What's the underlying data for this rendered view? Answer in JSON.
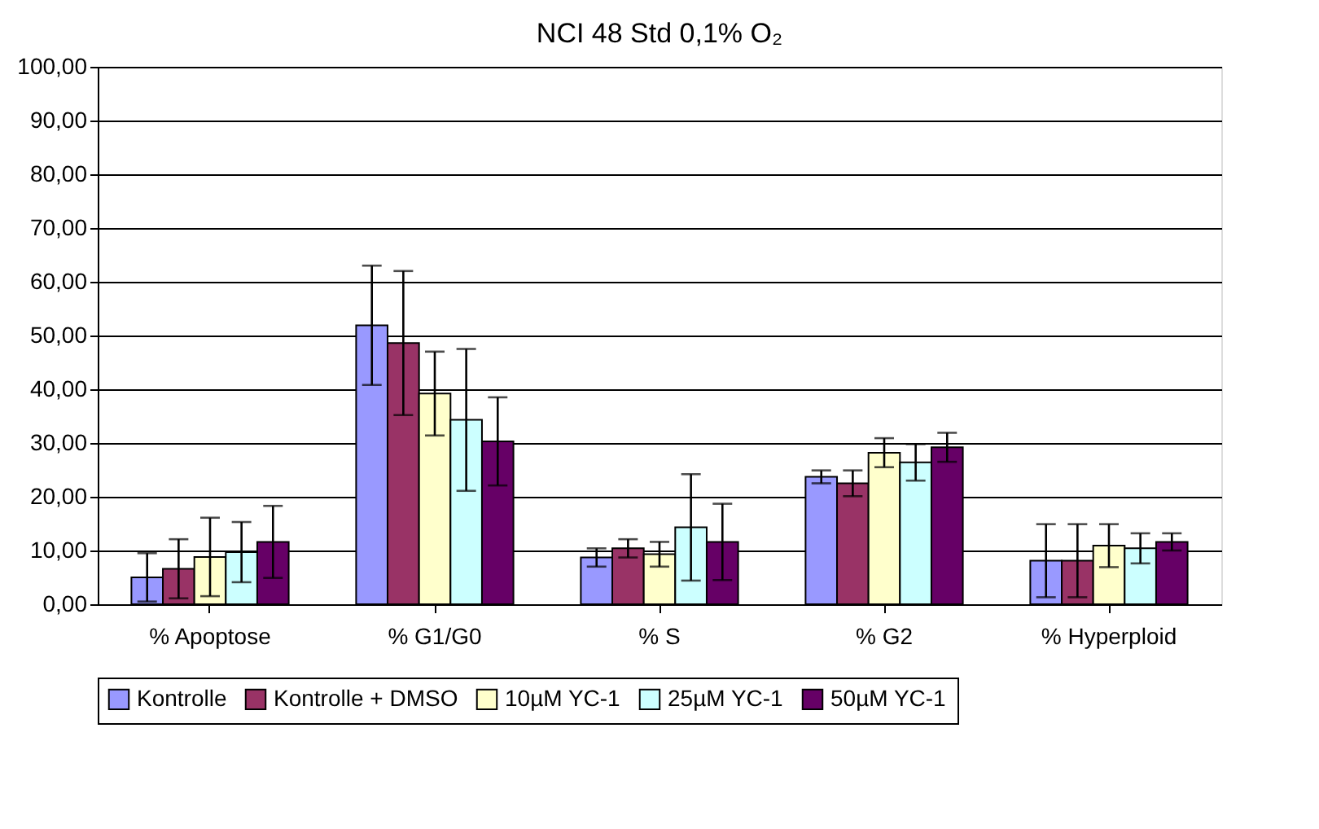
{
  "chart_data": {
    "type": "bar",
    "title": "NCI 48 Std 0,1% O₂",
    "categories": [
      "% Apoptose",
      "% G1/G0",
      "% S",
      "% G2",
      "% Hyperploid"
    ],
    "series": [
      {
        "name": "Kontrolle",
        "color": "#9999ff",
        "values": [
          5.0,
          51.9,
          8.7,
          23.7,
          8.1
        ],
        "errors": [
          4.5,
          11.1,
          1.7,
          1.2,
          6.8
        ]
      },
      {
        "name": "Kontrolle + DMSO",
        "color": "#993366",
        "values": [
          6.6,
          48.6,
          10.4,
          22.5,
          8.1
        ],
        "errors": [
          5.5,
          13.4,
          1.7,
          2.4,
          6.8
        ]
      },
      {
        "name": "10µM YC-1",
        "color": "#ffffcc",
        "values": [
          8.8,
          39.2,
          9.3,
          28.2,
          10.9
        ],
        "errors": [
          7.3,
          7.8,
          2.3,
          2.7,
          4.0
        ]
      },
      {
        "name": "25µM YC-1",
        "color": "#ccffff",
        "values": [
          9.7,
          34.3,
          14.3,
          26.4,
          10.4
        ],
        "errors": [
          5.6,
          13.2,
          9.9,
          3.4,
          2.8
        ]
      },
      {
        "name": "50µM YC-1",
        "color": "#660066",
        "values": [
          11.6,
          30.3,
          11.6,
          29.2,
          11.6
        ],
        "errors": [
          6.7,
          8.2,
          7.1,
          2.7,
          1.6
        ]
      }
    ],
    "ylim": [
      0,
      100
    ],
    "yticks": [
      {
        "value": 0,
        "label": "0,00"
      },
      {
        "value": 10,
        "label": "10,00"
      },
      {
        "value": 20,
        "label": "20,00"
      },
      {
        "value": 30,
        "label": "30,00"
      },
      {
        "value": 40,
        "label": "40,00"
      },
      {
        "value": 50,
        "label": "50,00"
      },
      {
        "value": 60,
        "label": "60,00"
      },
      {
        "value": 70,
        "label": "70,00"
      },
      {
        "value": 80,
        "label": "80,00"
      },
      {
        "value": 90,
        "label": "90,00"
      },
      {
        "value": 100,
        "label": "100,00"
      }
    ],
    "grid": "y",
    "legend": "bottom"
  }
}
